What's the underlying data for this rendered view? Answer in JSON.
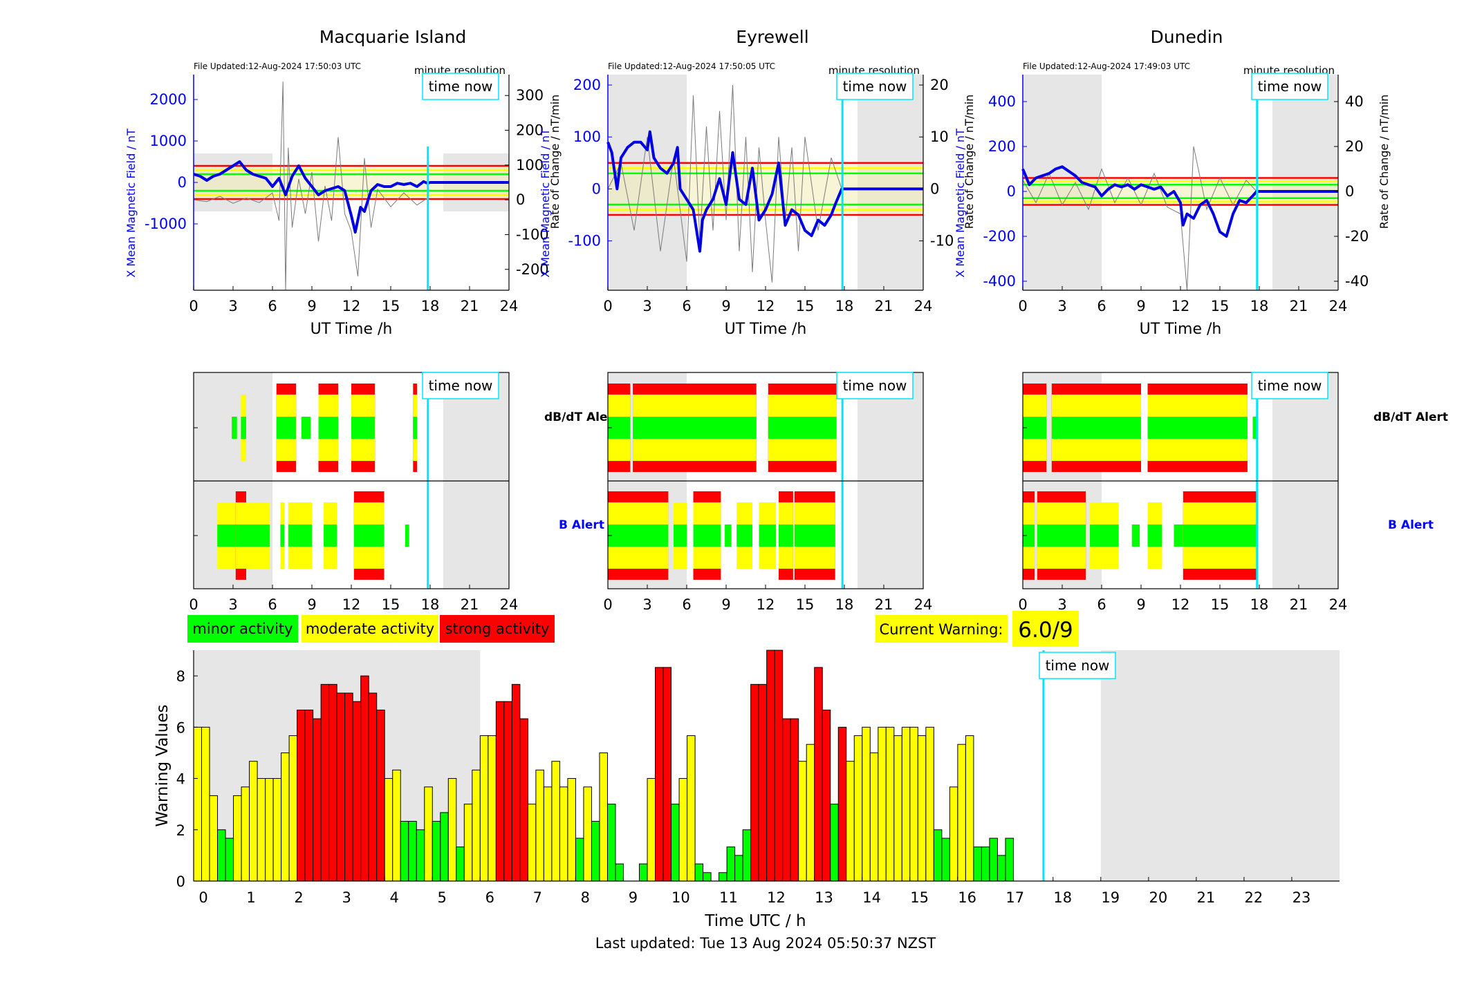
{
  "colors": {
    "minor": "#00ff00",
    "moderate": "#ffff00",
    "strong": "#ff0000",
    "time_now": "#00e5ff",
    "mean_field": "#0000e0",
    "night_shade": "#e6e6e6",
    "current_warning_bg": "#ffff00"
  },
  "chart_data": [
    {
      "type": "line",
      "title": "Macquarie Island",
      "file_updated": "File Updated:12-Aug-2024 17:50:03 UTC",
      "resolution_label": "minute resolution",
      "time_now_label": "time now",
      "xlabel": "UT Time /h",
      "ylabel_left": "X Mean Magnetic Field / nT",
      "ylabel_right": "Rate of Change / nT/min",
      "xlim": [
        0,
        24
      ],
      "xticks": [
        "0",
        "3",
        "6",
        "9",
        "12",
        "15",
        "18",
        "21",
        "24"
      ],
      "ylim_left": [
        -2600,
        2600
      ],
      "yticks_left": [
        -1000,
        0,
        1000,
        2000
      ],
      "ylim_right": [
        -260,
        360
      ],
      "yticks_right": [
        -200,
        -100,
        0,
        100,
        200,
        300
      ],
      "time_now": 17.83,
      "night_shading": [
        [
          0,
          6,
          -700,
          700
        ],
        [
          19,
          24,
          -700,
          700
        ]
      ],
      "threshold_lines": [
        {
          "color": "red",
          "value": 400
        },
        {
          "color": "yellow",
          "value": 300
        },
        {
          "color": "green",
          "value": 200
        },
        {
          "color": "green",
          "value": -200
        },
        {
          "color": "yellow",
          "value": -300
        },
        {
          "color": "red",
          "value": -400
        }
      ],
      "mean_field": {
        "x": [
          0,
          0.5,
          1,
          1.5,
          2,
          2.5,
          3,
          3.5,
          4,
          4.5,
          5,
          5.5,
          6,
          6.5,
          7,
          7.5,
          8,
          8.5,
          9,
          9.5,
          10,
          10.5,
          11,
          11.5,
          12,
          12.3,
          12.7,
          13,
          13.5,
          14,
          14.5,
          15,
          15.5,
          16,
          16.5,
          17,
          17.5,
          17.8,
          18,
          24
        ],
        "y": [
          200,
          150,
          50,
          150,
          200,
          300,
          400,
          500,
          300,
          200,
          150,
          100,
          -100,
          100,
          -300,
          150,
          400,
          100,
          -100,
          -300,
          -200,
          -150,
          -100,
          -200,
          -800,
          -1200,
          -600,
          -700,
          -200,
          -50,
          -100,
          -100,
          -20,
          -50,
          -20,
          -100,
          20,
          -20,
          0,
          0
        ]
      },
      "rate_of_change": {
        "x": [
          0,
          1,
          2,
          3,
          4,
          5,
          6,
          6.5,
          6.8,
          7,
          7.2,
          7.5,
          8,
          8.5,
          9,
          9.5,
          10,
          10.5,
          11,
          11.5,
          12,
          12.5,
          13,
          13.5,
          14,
          15,
          16,
          17,
          17.8
        ],
        "y": [
          0,
          -5,
          10,
          -10,
          5,
          -8,
          20,
          -60,
          340,
          -260,
          150,
          -80,
          60,
          -40,
          80,
          -120,
          40,
          -60,
          180,
          -40,
          -90,
          -220,
          120,
          -80,
          30,
          -20,
          20,
          -15,
          5
        ]
      }
    },
    {
      "type": "line",
      "title": "Eyrewell",
      "file_updated": "File Updated:12-Aug-2024 17:50:05 UTC",
      "resolution_label": "minute resolution",
      "time_now_label": "time now",
      "xlabel": "UT Time /h",
      "ylabel_left": "X Mean Magnetic Field / nT",
      "ylabel_right": "Rate of Change / nT/min",
      "xlim": [
        0,
        24
      ],
      "xticks": [
        "0",
        "3",
        "6",
        "9",
        "12",
        "15",
        "18",
        "21",
        "24"
      ],
      "ylim_left": [
        -195,
        220
      ],
      "yticks_left": [
        -100,
        0,
        100,
        200
      ],
      "ylim_right": [
        -19.5,
        22
      ],
      "yticks_right": [
        -10,
        0,
        10,
        20
      ],
      "time_now": 17.85,
      "night_shading": [
        [
          0,
          6,
          -195,
          220
        ],
        [
          19,
          24,
          -195,
          220
        ]
      ],
      "threshold_lines": [
        {
          "color": "red",
          "value": 50
        },
        {
          "color": "yellow",
          "value": 40
        },
        {
          "color": "green",
          "value": 30
        },
        {
          "color": "green",
          "value": -30
        },
        {
          "color": "yellow",
          "value": -40
        },
        {
          "color": "red",
          "value": -50
        }
      ],
      "mean_field": {
        "x": [
          0,
          0.3,
          0.7,
          1,
          1.5,
          2,
          2.5,
          3,
          3.2,
          3.5,
          4,
          4.5,
          5,
          5.3,
          5.5,
          6,
          6.5,
          7,
          7.2,
          7.5,
          8,
          8.5,
          9,
          9.5,
          10,
          10.5,
          11,
          11.5,
          12,
          12.5,
          13,
          13.5,
          14,
          14.5,
          15,
          15.5,
          16,
          16.5,
          17,
          17.3,
          17.8,
          24
        ],
        "y": [
          90,
          70,
          0,
          60,
          80,
          90,
          90,
          75,
          110,
          60,
          40,
          30,
          50,
          80,
          0,
          -20,
          -40,
          -120,
          -60,
          -40,
          -20,
          20,
          -30,
          70,
          -20,
          -30,
          40,
          -60,
          -40,
          -10,
          50,
          -70,
          -40,
          -50,
          -80,
          -90,
          -60,
          -70,
          -50,
          -30,
          0,
          0
        ]
      },
      "rate_of_change": {
        "x": [
          0,
          1,
          2,
          3,
          4,
          5,
          6,
          6.5,
          7,
          7.5,
          8,
          8.5,
          9,
          9.5,
          10,
          10.5,
          11,
          11.5,
          12,
          12.5,
          13,
          13.5,
          14,
          14.5,
          15,
          16,
          17,
          17.8
        ],
        "y": [
          0,
          5,
          -8,
          10,
          -12,
          6,
          -14,
          18,
          -10,
          12,
          -8,
          15,
          -6,
          20,
          -12,
          10,
          -16,
          8,
          -6,
          -18,
          10,
          -6,
          8,
          -12,
          10,
          -8,
          6,
          0
        ]
      }
    },
    {
      "type": "line",
      "title": "Dunedin",
      "file_updated": "File Updated:12-Aug-2024 17:49:03 UTC",
      "resolution_label": "minute resolution",
      "time_now_label": "time now",
      "xlabel": "UT Time /h",
      "ylabel_left": "X Mean Magnetic Field / nT",
      "ylabel_right": "Rate of Change / nT/min",
      "xlim": [
        0,
        24
      ],
      "xticks": [
        "0",
        "3",
        "6",
        "9",
        "12",
        "15",
        "18",
        "21",
        "24"
      ],
      "ylim_left": [
        -440,
        520
      ],
      "yticks_left": [
        -400,
        -200,
        0,
        200,
        400
      ],
      "ylim_right": [
        -44,
        52
      ],
      "yticks_right": [
        -40,
        -20,
        0,
        20,
        40
      ],
      "time_now": 17.83,
      "night_shading": [
        [
          0,
          6,
          -440,
          520
        ],
        [
          19,
          24,
          -440,
          520
        ]
      ],
      "threshold_lines": [
        {
          "color": "red",
          "value": 60
        },
        {
          "color": "yellow",
          "value": 45
        },
        {
          "color": "green",
          "value": 30
        },
        {
          "color": "green",
          "value": -30
        },
        {
          "color": "yellow",
          "value": -45
        },
        {
          "color": "red",
          "value": -60
        }
      ],
      "mean_field": {
        "x": [
          0,
          0.5,
          1,
          1.5,
          2,
          2.5,
          3,
          3.5,
          4,
          4.5,
          5,
          5.5,
          6,
          6.5,
          7,
          7.5,
          8,
          8.5,
          9,
          9.5,
          10,
          10.5,
          11,
          11.5,
          12,
          12.2,
          12.5,
          13,
          13.5,
          14,
          14.5,
          15,
          15.5,
          16,
          16.5,
          17,
          17.5,
          17.8,
          24
        ],
        "y": [
          100,
          30,
          60,
          70,
          80,
          100,
          110,
          90,
          70,
          40,
          30,
          20,
          -20,
          10,
          30,
          20,
          30,
          10,
          30,
          20,
          10,
          20,
          -20,
          0,
          -50,
          -150,
          -100,
          -120,
          -60,
          -40,
          -100,
          -180,
          -200,
          -100,
          -40,
          -50,
          -20,
          0,
          0
        ]
      },
      "rate_of_change": {
        "x": [
          0,
          1,
          2,
          3,
          4,
          5,
          6,
          7,
          8,
          9,
          10,
          11,
          12,
          12.5,
          13,
          14,
          15,
          16,
          17,
          17.8
        ],
        "y": [
          5,
          -5,
          8,
          -6,
          4,
          -8,
          10,
          -5,
          6,
          -6,
          8,
          -7,
          -10,
          -44,
          20,
          -8,
          6,
          -6,
          5,
          0
        ]
      }
    },
    {
      "type": "bar",
      "title": "",
      "xlabel": "Time UTC / h",
      "ylabel": "Warning Values",
      "xlim": [
        0,
        24
      ],
      "xticks": [
        "0",
        "1",
        "2",
        "3",
        "4",
        "5",
        "6",
        "7",
        "8",
        "9",
        "10",
        "11",
        "12",
        "13",
        "14",
        "15",
        "16",
        "17",
        "18",
        "19",
        "20",
        "21",
        "22",
        "23"
      ],
      "ylim": [
        0,
        9
      ],
      "yticks": [
        "0",
        "2",
        "4",
        "6",
        "8"
      ],
      "time_now": 17.8,
      "time_now_label": "time now",
      "night_shading": [
        [
          0,
          6
        ],
        [
          19,
          24
        ]
      ],
      "bar_width_h": 0.1667,
      "values": [
        6,
        6,
        3.33,
        2,
        1.67,
        3.33,
        3.67,
        4.67,
        4,
        4,
        4,
        5,
        5.67,
        6.67,
        6.67,
        6.33,
        7.67,
        7.67,
        7.33,
        7.33,
        7,
        8,
        7.33,
        6.67,
        4,
        4.33,
        2.33,
        2.33,
        2,
        3.67,
        2.33,
        2.67,
        4,
        1.33,
        3,
        4.33,
        5.67,
        5.67,
        7,
        7,
        7.67,
        6.33,
        3,
        4.33,
        3.67,
        4.67,
        3.67,
        4,
        1.67,
        3.67,
        2.33,
        5,
        3,
        0.67,
        0,
        0,
        0.67,
        4,
        8.33,
        8.33,
        3,
        4,
        5.67,
        0.67,
        0.33,
        0,
        0.33,
        1.33,
        1,
        2,
        7.67,
        7.67,
        9,
        9,
        6.33,
        6.33,
        4.67,
        5.33,
        8.33,
        6.67,
        3,
        6,
        4.67,
        5.67,
        6,
        5,
        6,
        6,
        5.67,
        6,
        6,
        5.67,
        6,
        2,
        1.67,
        3.67,
        5.33,
        5.67,
        1.33,
        1.33,
        1.67,
        1,
        1.67
      ],
      "levels": [
        "moderate",
        "moderate",
        "moderate",
        "minor",
        "minor",
        "moderate",
        "moderate",
        "moderate",
        "moderate",
        "moderate",
        "moderate",
        "moderate",
        "moderate",
        "strong",
        "strong",
        "strong",
        "strong",
        "strong",
        "strong",
        "strong",
        "strong",
        "strong",
        "strong",
        "strong",
        "moderate",
        "moderate",
        "minor",
        "minor",
        "minor",
        "moderate",
        "minor",
        "minor",
        "moderate",
        "minor",
        "moderate",
        "moderate",
        "moderate",
        "moderate",
        "strong",
        "strong",
        "strong",
        "strong",
        "moderate",
        "moderate",
        "moderate",
        "moderate",
        "moderate",
        "moderate",
        "minor",
        "moderate",
        "minor",
        "moderate",
        "minor",
        "minor",
        "minor",
        "minor",
        "minor",
        "moderate",
        "strong",
        "strong",
        "minor",
        "moderate",
        "moderate",
        "minor",
        "minor",
        "minor",
        "minor",
        "minor",
        "minor",
        "minor",
        "strong",
        "strong",
        "strong",
        "strong",
        "strong",
        "strong",
        "moderate",
        "moderate",
        "strong",
        "strong",
        "minor",
        "strong",
        "moderate",
        "moderate",
        "moderate",
        "moderate",
        "moderate",
        "moderate",
        "moderate",
        "moderate",
        "moderate",
        "moderate",
        "moderate",
        "minor",
        "minor",
        "moderate",
        "moderate",
        "moderate",
        "minor",
        "minor",
        "minor",
        "minor",
        "minor"
      ]
    }
  ],
  "alert_rows": [
    {
      "time_now": 17.83,
      "night_shading": [
        [
          0,
          6
        ],
        [
          19,
          24
        ]
      ],
      "dbdt_label": "dB/dT Alert",
      "b_label": "B Alert",
      "dbdt_segments": [
        [
          2.9,
          3.3,
          "minor"
        ],
        [
          3.6,
          4.0,
          "moderate"
        ],
        [
          6.3,
          7.8,
          "strong"
        ],
        [
          8.2,
          8.9,
          "minor"
        ],
        [
          9.5,
          11.0,
          "strong"
        ],
        [
          12.0,
          13.8,
          "strong"
        ],
        [
          16.7,
          17.0,
          "strong"
        ]
      ],
      "b_segments": [
        [
          1.8,
          5.8,
          "moderate"
        ],
        [
          3.2,
          4.0,
          "strong"
        ],
        [
          6.6,
          6.9,
          "moderate"
        ],
        [
          7.2,
          9.0,
          "moderate"
        ],
        [
          9.9,
          10.9,
          "moderate"
        ],
        [
          12.2,
          14.5,
          "strong"
        ],
        [
          16.1,
          16.4,
          "minor"
        ]
      ]
    },
    {
      "time_now": 17.85,
      "night_shading": [
        [
          0,
          6
        ],
        [
          19,
          24
        ]
      ],
      "dbdt_label": "dB/dT Alert",
      "b_label": "B Alert",
      "dbdt_segments": [
        [
          0,
          1.7,
          "strong"
        ],
        [
          1.9,
          11.3,
          "strong"
        ],
        [
          12.2,
          17.4,
          "strong"
        ]
      ],
      "b_segments": [
        [
          0,
          4.6,
          "strong"
        ],
        [
          5.0,
          6.0,
          "moderate"
        ],
        [
          6.5,
          8.6,
          "strong"
        ],
        [
          8.9,
          9.4,
          "minor"
        ],
        [
          9.8,
          11.0,
          "moderate"
        ],
        [
          11.5,
          12.8,
          "moderate"
        ],
        [
          13.0,
          14.1,
          "strong"
        ],
        [
          14.2,
          17.3,
          "strong"
        ]
      ]
    },
    {
      "time_now": 17.83,
      "night_shading": [
        [
          0,
          6
        ],
        [
          19,
          24
        ]
      ],
      "dbdt_label": "dB/dT Alert",
      "b_label": "B Alert",
      "dbdt_segments": [
        [
          0,
          1.8,
          "strong"
        ],
        [
          2.2,
          9.0,
          "strong"
        ],
        [
          9.5,
          12.0,
          "strong"
        ],
        [
          12.0,
          17.1,
          "strong"
        ],
        [
          17.5,
          17.9,
          "minor"
        ]
      ],
      "b_segments": [
        [
          0,
          0.9,
          "strong"
        ],
        [
          1.1,
          4.8,
          "strong"
        ],
        [
          5.1,
          7.3,
          "moderate"
        ],
        [
          8.3,
          8.9,
          "minor"
        ],
        [
          9.5,
          10.6,
          "moderate"
        ],
        [
          11.5,
          12.2,
          "minor"
        ],
        [
          12.2,
          17.9,
          "strong"
        ]
      ]
    }
  ],
  "legend": {
    "minor": "minor activity",
    "moderate": "moderate activity",
    "strong": "strong activity"
  },
  "current_warning": {
    "label": "Current Warning:",
    "value": "6.0/9"
  },
  "footer": {
    "last_updated": "Last updated: Tue 13 Aug 2024 05:50:37 NZST"
  }
}
